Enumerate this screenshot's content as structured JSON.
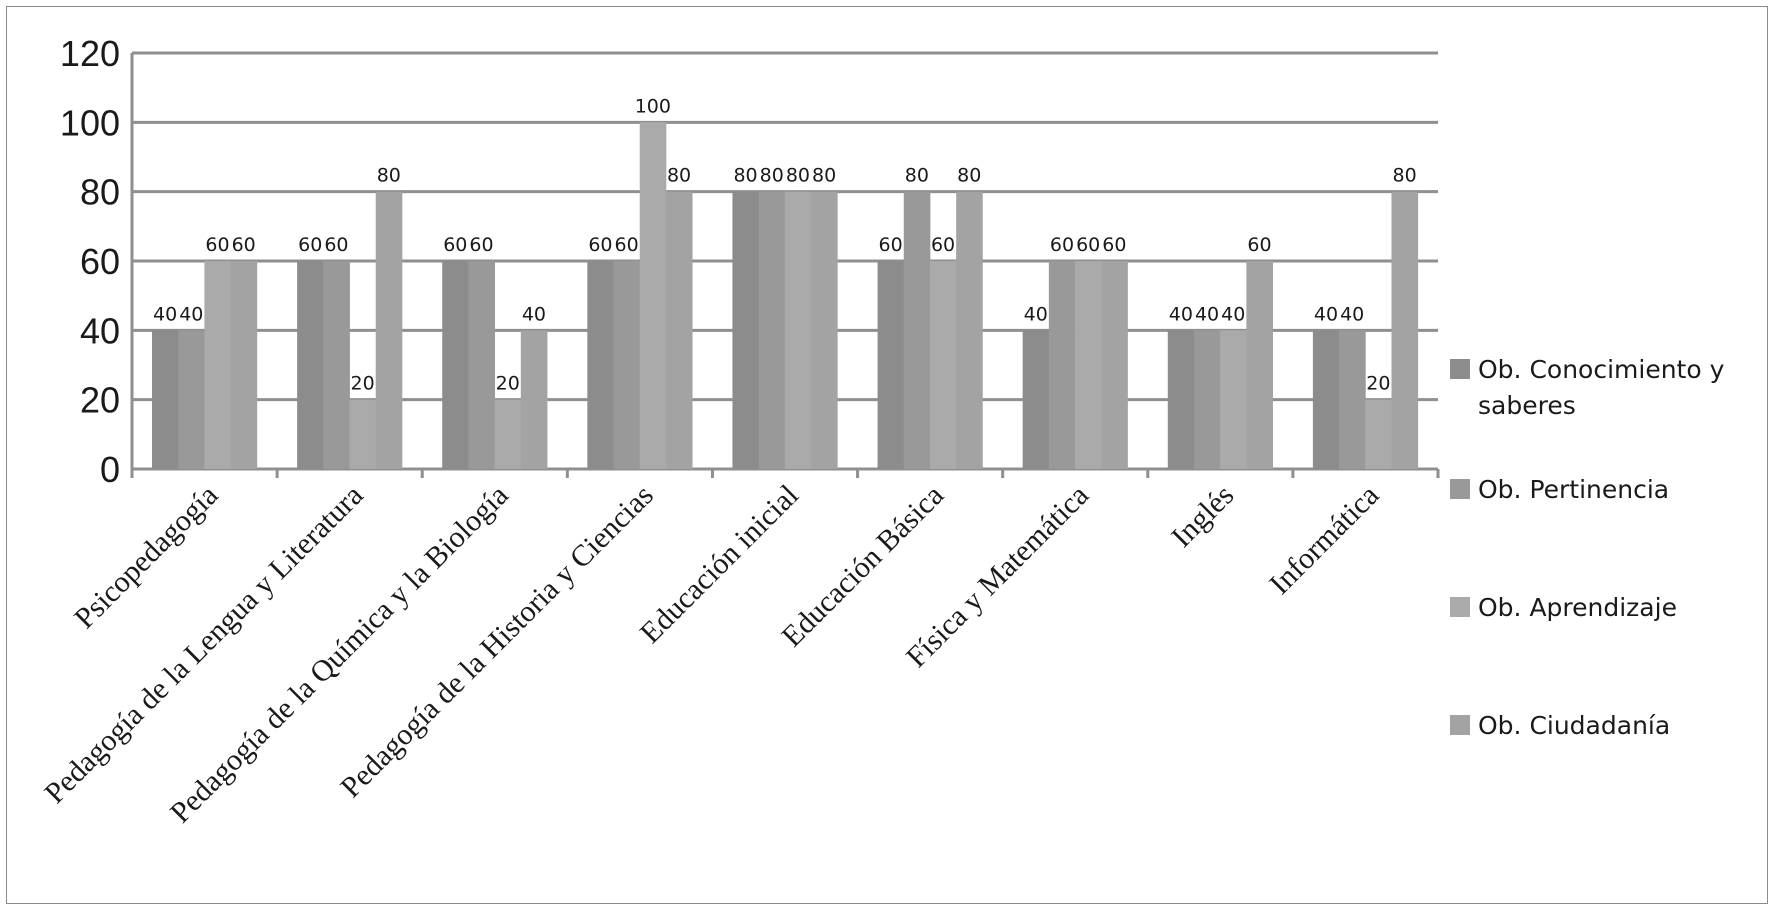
{
  "chart_data": {
    "type": "bar",
    "categories": [
      "Psicopedagogía",
      "Pedagogía de la Lengua y Literatura",
      "Pedagogía de la Química y la Biología",
      "Pedagogía de la Historia y Ciencias",
      "Educación inicial",
      "Educación Básica",
      "Física y Matemática",
      "Inglés",
      "Informática"
    ],
    "series": [
      {
        "name": "Ob. Conocimiento y saberes",
        "color": "#8c8c8c",
        "values": [
          40,
          60,
          60,
          60,
          80,
          60,
          40,
          40,
          40
        ]
      },
      {
        "name": "Ob. Pertinencia",
        "color": "#999999",
        "values": [
          40,
          60,
          60,
          60,
          80,
          80,
          60,
          40,
          40
        ]
      },
      {
        "name": "Ob. Aprendizaje",
        "color": "#aaaaaa",
        "values": [
          60,
          20,
          20,
          100,
          80,
          60,
          60,
          40,
          20
        ]
      },
      {
        "name": "Ob. Ciudadanía",
        "color": "#a3a3a3",
        "values": [
          60,
          80,
          40,
          80,
          80,
          80,
          60,
          60,
          80
        ]
      }
    ],
    "ylim": [
      0,
      120
    ],
    "yticks": [
      0,
      20,
      40,
      60,
      80,
      100,
      120
    ],
    "grid": true,
    "legend_position": "right",
    "title": "",
    "xlabel": "",
    "ylabel": ""
  }
}
